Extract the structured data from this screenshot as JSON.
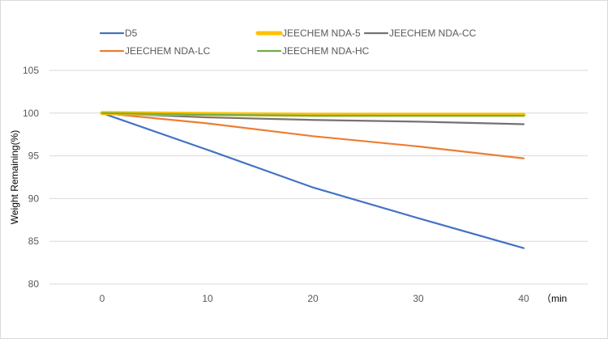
{
  "chart_data": {
    "type": "line",
    "title": "",
    "xlabel": "（min",
    "ylabel": "Weight Remaining(%)",
    "x": [
      0,
      10,
      20,
      30,
      40
    ],
    "ylim": [
      80,
      105
    ],
    "yticks": [
      80,
      85,
      90,
      95,
      100,
      105
    ],
    "grid": true,
    "legend_placement": "top",
    "series": [
      {
        "name": "D5",
        "color": "#4472c4",
        "values": [
          100,
          95.7,
          91.3,
          87.7,
          84.2
        ]
      },
      {
        "name": "JEECHEM NDA-5",
        "color": "#ffc000",
        "values": [
          100,
          99.9,
          99.8,
          99.8,
          99.8
        ]
      },
      {
        "name": "JEECHEM NDA-CC",
        "color": "#767171",
        "values": [
          100,
          99.5,
          99.2,
          99.0,
          98.7
        ]
      },
      {
        "name": "JEECHEM NDA-LC",
        "color": "#ed7d31",
        "values": [
          100,
          98.8,
          97.3,
          96.1,
          94.7
        ]
      },
      {
        "name": "JEECHEM NDA-HC",
        "color": "#70ad47",
        "values": [
          100,
          99.8,
          99.7,
          99.7,
          99.7
        ]
      }
    ]
  }
}
